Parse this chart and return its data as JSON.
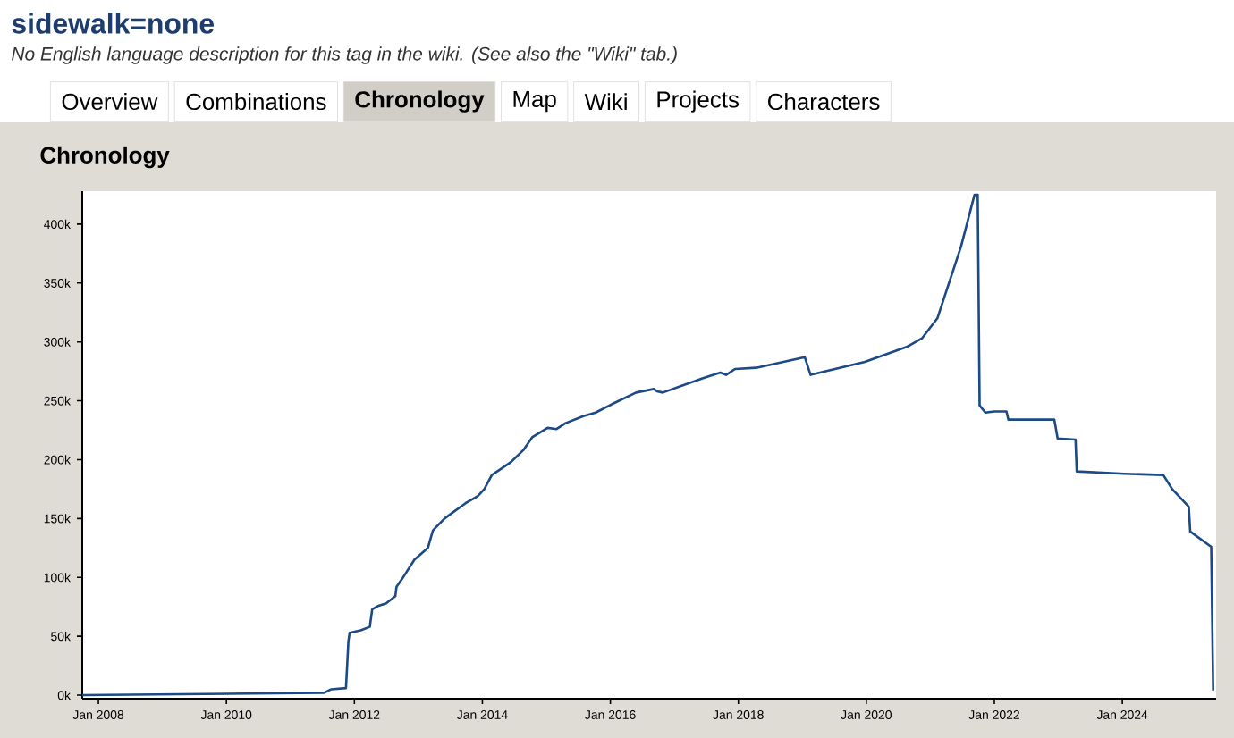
{
  "chart_data": {
    "type": "line",
    "title": "Chronology",
    "annotations": [
      "sidewalk=none",
      "No English language description for this tag in the wiki. (See also the \"Wiki\" tab.)",
      "Overview",
      "Combinations",
      "Chronology",
      "Map",
      "Wiki",
      "Projects",
      "Characters"
    ],
    "x": [
      "2007-10-01",
      "2011-07-13",
      "2011-08-22",
      "2011-11-14",
      "2011-11-28",
      "2011-12-05",
      "2012-02-06",
      "2012-03-29",
      "2012-04-12",
      "2012-05-19",
      "2012-07-01",
      "2012-08-22",
      "2012-08-29",
      "2012-10-01",
      "2012-12-09",
      "2013-02-24",
      "2013-03-25",
      "2013-05-30",
      "2013-09-27",
      "2013-12-05",
      "2014-01-12",
      "2014-02-24",
      "2014-04-05",
      "2014-06-13",
      "2014-08-22",
      "2014-10-12",
      "2015-01-08",
      "2015-02-28",
      "2015-04-20",
      "2015-07-31",
      "2015-10-09",
      "2016-01-08",
      "2016-05-27",
      "2016-09-06",
      "2016-09-24",
      "2016-10-27",
      "2017-06-10",
      "2017-09-20",
      "2017-10-23",
      "2017-12-13",
      "2018-04-12",
      "2019-01-15",
      "2019-02-17",
      "2019-12-24",
      "2020-08-22",
      "2020-11-14",
      "2021-02-10",
      "2021-06-25",
      "2021-09-10",
      "2021-09-28",
      "2021-10-09",
      "2021-11-11",
      "2022-01-01",
      "2022-03-11",
      "2022-03-22",
      "2022-12-09",
      "2022-12-28",
      "2023-04-09",
      "2023-04-16",
      "2024-01-12",
      "2024-08-22",
      "2024-10-12",
      "2025-01-15",
      "2025-01-23",
      "2025-05-23",
      "2025-06-03"
    ],
    "series": [
      {
        "color": "#1b4a86",
        "values": [
          0,
          2000,
          5000,
          6000,
          46000,
          53000,
          55000,
          58000,
          73000,
          76000,
          78000,
          84000,
          92000,
          99000,
          115000,
          125000,
          140000,
          150000,
          163000,
          169000,
          175000,
          187000,
          191000,
          198000,
          208000,
          219000,
          227000,
          226000,
          231000,
          237000,
          240000,
          247000,
          257000,
          260000,
          258000,
          257000,
          269000,
          274000,
          272000,
          277000,
          278000,
          287000,
          272000,
          283000,
          296000,
          303000,
          320000,
          381000,
          425000,
          425000,
          246000,
          240000,
          241000,
          241000,
          234000,
          234000,
          218000,
          217000,
          190000,
          188000,
          187000,
          175000,
          160000,
          139000,
          126000,
          4000
        ]
      }
    ],
    "xlim": [
      "2007-10-01",
      "2025-06-20"
    ],
    "ylim": [
      -3000,
      428000
    ],
    "xticks": [
      {
        "value": "2008-01-01",
        "label": "Jan 2008"
      },
      {
        "value": "2010-01-01",
        "label": "Jan 2010"
      },
      {
        "value": "2012-01-01",
        "label": "Jan 2012"
      },
      {
        "value": "2014-01-01",
        "label": "Jan 2014"
      },
      {
        "value": "2016-01-01",
        "label": "Jan 2016"
      },
      {
        "value": "2018-01-01",
        "label": "Jan 2018"
      },
      {
        "value": "2020-01-01",
        "label": "Jan 2020"
      },
      {
        "value": "2022-01-01",
        "label": "Jan 2022"
      },
      {
        "value": "2024-01-01",
        "label": "Jan 2024"
      }
    ],
    "yticks": [
      {
        "value": 0,
        "label": "0k"
      },
      {
        "value": 50000,
        "label": "50k"
      },
      {
        "value": 100000,
        "label": "100k"
      },
      {
        "value": 150000,
        "label": "150k"
      },
      {
        "value": 200000,
        "label": "200k"
      },
      {
        "value": 250000,
        "label": "250k"
      },
      {
        "value": 300000,
        "label": "300k"
      },
      {
        "value": 350000,
        "label": "350k"
      },
      {
        "value": 400000,
        "label": "400k"
      }
    ],
    "grid": false
  }
}
